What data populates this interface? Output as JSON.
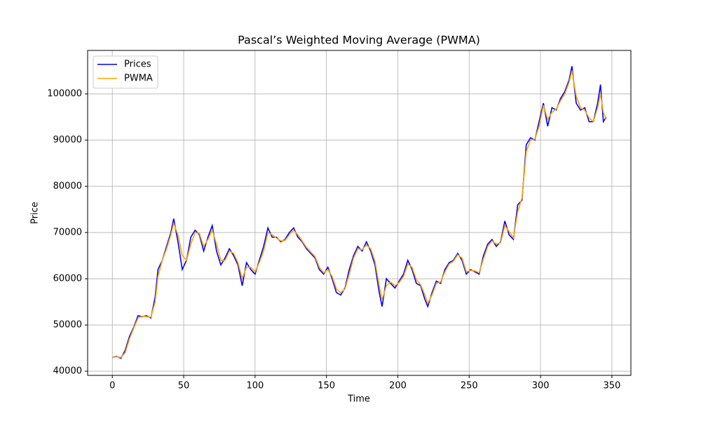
{
  "chart_data": {
    "type": "line",
    "title": "Pascal’s Weighted Moving Average (PWMA)",
    "x_label": "Time",
    "y_label": "Price",
    "x": [
      0,
      3,
      6,
      9,
      12,
      15,
      18,
      21,
      24,
      27,
      30,
      32,
      35,
      38,
      41,
      43,
      46,
      49,
      52,
      55,
      58,
      61,
      64,
      67,
      70,
      73,
      76,
      79,
      82,
      85,
      88,
      91,
      94,
      97,
      100,
      103,
      106,
      109,
      112,
      115,
      118,
      121,
      124,
      127,
      130,
      133,
      136,
      139,
      142,
      145,
      148,
      151,
      154,
      157,
      160,
      163,
      166,
      169,
      172,
      175,
      178,
      181,
      184,
      187,
      189,
      192,
      195,
      198,
      201,
      204,
      207,
      210,
      213,
      216,
      219,
      221,
      224,
      227,
      230,
      233,
      236,
      239,
      242,
      245,
      248,
      251,
      254,
      257,
      260,
      263,
      266,
      269,
      272,
      275,
      278,
      281,
      284,
      287,
      290,
      293,
      296,
      299,
      302,
      305,
      308,
      311,
      314,
      317,
      320,
      322,
      325,
      328,
      331,
      334,
      337,
      340,
      342,
      344,
      346
    ],
    "series": [
      {
        "name": "Prices",
        "color": "#0000ff",
        "values": [
          43000,
          43200,
          42800,
          44500,
          47500,
          49500,
          52000,
          51800,
          52000,
          51500,
          56000,
          62000,
          64000,
          67000,
          70000,
          73000,
          68000,
          62000,
          64000,
          69000,
          70500,
          69500,
          66000,
          69000,
          71500,
          66000,
          63000,
          64500,
          66500,
          65000,
          63000,
          58500,
          63500,
          62000,
          61000,
          64000,
          67000,
          71000,
          69000,
          69000,
          68000,
          68500,
          70000,
          71000,
          69000,
          68000,
          66500,
          65500,
          64500,
          62000,
          61000,
          62500,
          60000,
          57000,
          56500,
          58000,
          62000,
          65000,
          67000,
          66000,
          68000,
          66000,
          63000,
          57000,
          54000,
          60000,
          59000,
          58000,
          59500,
          61000,
          64000,
          62000,
          59000,
          58500,
          55500,
          54000,
          57000,
          59500,
          59000,
          62000,
          63500,
          64000,
          65500,
          64000,
          61000,
          62000,
          61500,
          61000,
          65000,
          67500,
          68500,
          67000,
          68000,
          72500,
          69500,
          68500,
          76000,
          77000,
          89000,
          90500,
          90000,
          94000,
          98000,
          93000,
          97000,
          96500,
          99000,
          100500,
          103000,
          106000,
          98000,
          96500,
          97000,
          94000,
          94000,
          98000,
          102000,
          94000,
          95000
        ]
      },
      {
        "name": "PWMA",
        "color": "#ffa500",
        "values": [
          43000,
          43100,
          43000,
          44000,
          47000,
          49300,
          51500,
          51900,
          51800,
          51700,
          55000,
          60500,
          64000,
          66500,
          69500,
          72000,
          69500,
          65000,
          64000,
          67500,
          70000,
          69800,
          67000,
          68500,
          70500,
          67500,
          64000,
          64000,
          66000,
          65500,
          63500,
          60000,
          62500,
          62500,
          61500,
          63500,
          66000,
          70000,
          69500,
          68800,
          68200,
          68300,
          69500,
          70500,
          69500,
          68200,
          66800,
          65800,
          64800,
          62500,
          61300,
          62000,
          60500,
          57800,
          57000,
          57800,
          61000,
          64500,
          66500,
          66300,
          67300,
          66500,
          63800,
          58500,
          55500,
          58500,
          59300,
          58500,
          59200,
          60500,
          63200,
          62500,
          59800,
          58700,
          56500,
          54700,
          56500,
          59000,
          59300,
          61500,
          63200,
          63800,
          65200,
          64500,
          61500,
          61800,
          61700,
          61300,
          64300,
          67000,
          68200,
          67500,
          67800,
          71500,
          70200,
          68800,
          74500,
          77500,
          87500,
          90000,
          90200,
          93000,
          97500,
          94500,
          96000,
          96700,
          98500,
          100000,
          102500,
          105000,
          99500,
          97000,
          96500,
          94800,
          94000,
          97000,
          100000,
          96000,
          94500
        ]
      }
    ],
    "xlim": [
      -17.3,
      363.3
    ],
    "xticks": [
      0,
      50,
      100,
      150,
      200,
      250,
      300,
      350
    ],
    "ylim": [
      39100,
      109400
    ],
    "yticks": [
      40000,
      50000,
      60000,
      70000,
      80000,
      90000,
      100000
    ],
    "grid": true,
    "legend": "upper left"
  }
}
